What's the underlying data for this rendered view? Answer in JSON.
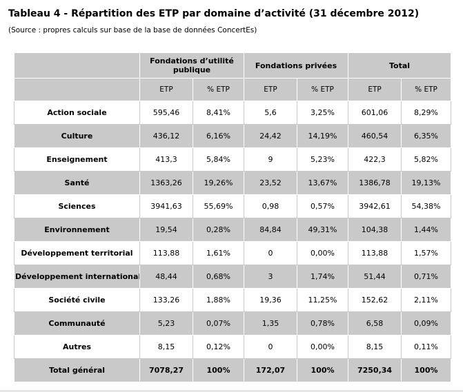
{
  "title": "Tableau 4 - Répartition des ETP par domaine d’activité (31 décembre 2012)",
  "source": "(Source : propres calculs sur base de la base de données ConcertEs)",
  "groups": {
    "fup": "Fondations d’utilité publique",
    "fp": "Fondations privées",
    "total": "Total"
  },
  "subheaders": {
    "etp": "ETP",
    "pct": "% ETP"
  },
  "rows": [
    {
      "label": "Action sociale",
      "fup_etp": "595,46",
      "fup_pct": "8,41%",
      "fp_etp": "5,6",
      "fp_pct": "3,25%",
      "tot_etp": "601,06",
      "tot_pct": "8,29%"
    },
    {
      "label": "Culture",
      "fup_etp": "436,12",
      "fup_pct": "6,16%",
      "fp_etp": "24,42",
      "fp_pct": "14,19%",
      "tot_etp": "460,54",
      "tot_pct": "6,35%"
    },
    {
      "label": "Enseignement",
      "fup_etp": "413,3",
      "fup_pct": "5,84%",
      "fp_etp": "9",
      "fp_pct": "5,23%",
      "tot_etp": "422,3",
      "tot_pct": "5,82%"
    },
    {
      "label": "Santé",
      "fup_etp": "1363,26",
      "fup_pct": "19,26%",
      "fp_etp": "23,52",
      "fp_pct": "13,67%",
      "tot_etp": "1386,78",
      "tot_pct": "19,13%"
    },
    {
      "label": "Sciences",
      "fup_etp": "3941,63",
      "fup_pct": "55,69%",
      "fp_etp": "0,98",
      "fp_pct": "0,57%",
      "tot_etp": "3942,61",
      "tot_pct": "54,38%"
    },
    {
      "label": "Environnement",
      "fup_etp": "19,54",
      "fup_pct": "0,28%",
      "fp_etp": "84,84",
      "fp_pct": "49,31%",
      "tot_etp": "104,38",
      "tot_pct": "1,44%"
    },
    {
      "label": "Développement territorial",
      "fup_etp": "113,88",
      "fup_pct": "1,61%",
      "fp_etp": "0",
      "fp_pct": "0,00%",
      "tot_etp": "113,88",
      "tot_pct": "1,57%"
    },
    {
      "label": "Développement international",
      "fup_etp": "48,44",
      "fup_pct": "0,68%",
      "fp_etp": "3",
      "fp_pct": "1,74%",
      "tot_etp": "51,44",
      "tot_pct": "0,71%"
    },
    {
      "label": "Société civile",
      "fup_etp": "133,26",
      "fup_pct": "1,88%",
      "fp_etp": "19,36",
      "fp_pct": "11,25%",
      "tot_etp": "152,62",
      "tot_pct": "2,11%"
    },
    {
      "label": "Communauté",
      "fup_etp": "5,23",
      "fup_pct": "0,07%",
      "fp_etp": "1,35",
      "fp_pct": "0,78%",
      "tot_etp": "6,58",
      "tot_pct": "0,09%"
    },
    {
      "label": "Autres",
      "fup_etp": "8,15",
      "fup_pct": "0,12%",
      "fp_etp": "0",
      "fp_pct": "0,00%",
      "tot_etp": "8,15",
      "tot_pct": "0,11%"
    }
  ],
  "total_row": {
    "label": "Total général",
    "fup_etp": "7078,27",
    "fup_pct": "100%",
    "fp_etp": "172,07",
    "fp_pct": "100%",
    "tot_etp": "7250,34",
    "tot_pct": "100%"
  }
}
